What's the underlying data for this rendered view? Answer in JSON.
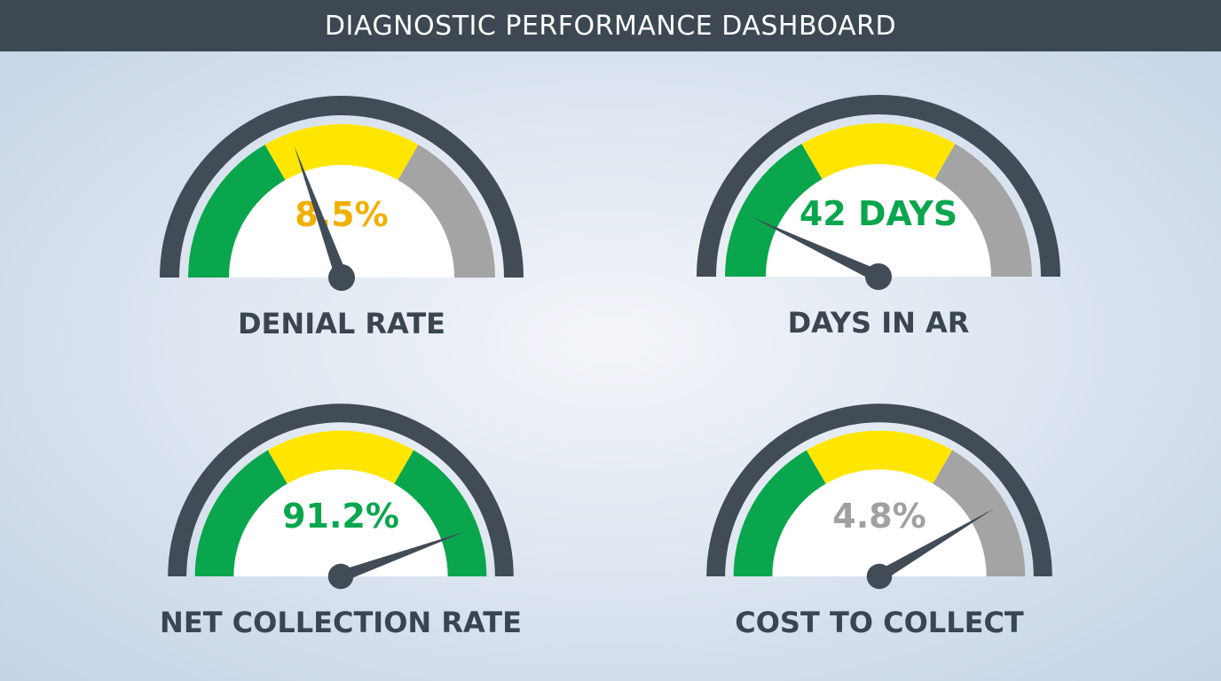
{
  "header": {
    "title": "DIAGNOSTIC PERFORMANCE DASHBOARD"
  },
  "colors": {
    "header_bg": "#3d4852",
    "green": "#0aa64e",
    "yellow": "#ffe600",
    "gray": "#a4a4a4",
    "ring": "#414c56"
  },
  "chart_data": {
    "type": "gauge",
    "gauges": [
      {
        "label": "DENIAL RATE",
        "value_text": "8.5%",
        "value_color": "#f0b000",
        "segments": [
          "green",
          "yellow",
          "gray"
        ],
        "needle_fraction": 0.39
      },
      {
        "label": "DAYS IN AR",
        "value_text": "42 DAYS",
        "value_color": "#0aa64e",
        "segments": [
          "green",
          "yellow",
          "gray"
        ],
        "needle_fraction": 0.14
      },
      {
        "label": "NET COLLECTION RATE",
        "value_text": "91.2%",
        "value_color": "#0aa64e",
        "segments": [
          "green",
          "yellow",
          "green"
        ],
        "needle_fraction": 0.89
      },
      {
        "label": "COST TO COLLECT",
        "value_text": "4.8%",
        "value_color": "#a0a0a0",
        "segments": [
          "green",
          "yellow",
          "gray"
        ],
        "needle_fraction": 0.83
      }
    ]
  }
}
